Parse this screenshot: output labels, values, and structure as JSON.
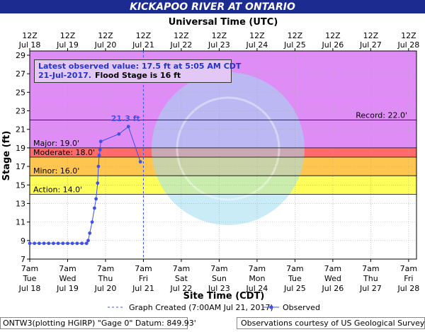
{
  "chart_data": {
    "type": "line",
    "title": "KICKAPOO RIVER AT ONTARIO",
    "top_axis_title": "Universal Time (UTC)",
    "ylabel": "Stage (ft)",
    "xlabel": "Site Time (CDT)",
    "xlim": [
      "Jul 18 07:00",
      "Jul 28 12:00"
    ],
    "ylim": [
      7,
      29
    ],
    "yticks": [
      7,
      9,
      11,
      13,
      15,
      17,
      19,
      21,
      23,
      25,
      27,
      29
    ],
    "xticks": [
      "Jul 18 07:00",
      "Jul 19 07:00",
      "Jul 20 07:00",
      "Jul 21 07:00",
      "Jul 22 07:00",
      "Jul 23 07:00",
      "Jul 24 07:00",
      "Jul 25 07:00",
      "Jul 26 07:00",
      "Jul 27 07:00",
      "Jul 28 07:00"
    ],
    "xtick_labels": [
      [
        "7am",
        "Tue",
        "Jul 18"
      ],
      [
        "7am",
        "Wed",
        "Jul 19"
      ],
      [
        "7am",
        "Thu",
        "Jul 20"
      ],
      [
        "7am",
        "Fri",
        "Jul 21"
      ],
      [
        "7am",
        "Sat",
        "Jul 22"
      ],
      [
        "7am",
        "Sun",
        "Jul 23"
      ],
      [
        "7am",
        "Mon",
        "Jul 24"
      ],
      [
        "7am",
        "Tue",
        "Jul 25"
      ],
      [
        "7am",
        "Wed",
        "Jul 26"
      ],
      [
        "7am",
        "Thu",
        "Jul 27"
      ],
      [
        "7am",
        "Fri",
        "Jul 28"
      ]
    ],
    "top_xtick_labels": [
      [
        "12Z",
        "Jul 18"
      ],
      [
        "12Z",
        "Jul 19"
      ],
      [
        "12Z",
        "Jul 20"
      ],
      [
        "12Z",
        "Jul 21"
      ],
      [
        "12Z",
        "Jul 22"
      ],
      [
        "12Z",
        "Jul 23"
      ],
      [
        "12Z",
        "Jul 24"
      ],
      [
        "12Z",
        "Jul 25"
      ],
      [
        "12Z",
        "Jul 26"
      ],
      [
        "12Z",
        "Jul 27"
      ],
      [
        "12Z",
        "Jul 28"
      ]
    ],
    "grid": true,
    "series": [
      {
        "name": "Observed",
        "color": "#3f51e8",
        "x": [
          "Jul 18 07:00",
          "Jul 18 10:00",
          "Jul 18 13:00",
          "Jul 18 16:00",
          "Jul 18 19:00",
          "Jul 18 22:00",
          "Jul 19 01:00",
          "Jul 19 04:00",
          "Jul 19 07:00",
          "Jul 19 10:00",
          "Jul 19 13:00",
          "Jul 19 16:00",
          "Jul 19 19:00",
          "Jul 19 20:00",
          "Jul 19 21:00",
          "Jul 19 22:30",
          "Jul 20 00:00",
          "Jul 20 01:00",
          "Jul 20 02:00",
          "Jul 20 02:30",
          "Jul 20 03:00",
          "Jul 20 03:30",
          "Jul 20 04:00",
          "Jul 20 15:30",
          "Jul 20 21:30",
          "Jul 21 05:05"
        ],
        "values": [
          8.7,
          8.7,
          8.7,
          8.7,
          8.7,
          8.7,
          8.7,
          8.7,
          8.7,
          8.7,
          8.7,
          8.7,
          8.7,
          9.0,
          9.8,
          11.0,
          12.5,
          13.5,
          15.2,
          17.0,
          18.2,
          18.8,
          19.7,
          20.5,
          21.3,
          17.5
        ]
      }
    ],
    "peak_label": "21.3 ft",
    "flood_categories": [
      {
        "label": "Action: 14.0'",
        "value": 14,
        "color": "#ffff5c"
      },
      {
        "label": "Minor: 16.0'",
        "value": 16,
        "color": "#ffc64f"
      },
      {
        "label": "Moderate: 18.0'",
        "value": 18,
        "color": "#ff6a6a"
      },
      {
        "label": "Major: 19.0'",
        "value": 19,
        "color": "#df8cf7"
      }
    ],
    "record": {
      "label": "Record: 22.0'",
      "value": 22
    },
    "graph_created": {
      "label": "Graph Created (7:00AM Jul 21, 2017)",
      "x": "Jul 21 07:00"
    },
    "info_box": {
      "line1": "Latest observed value: 17.5 ft at 5:05 AM CDT",
      "line2_date": "21-Jul-2017.",
      "line2_rest": "Flood Stage is 16 ft"
    }
  },
  "footer": {
    "left": "ONTW3(plotting HGIRP) \"Gage 0\" Datum: 849.93'",
    "right": "Observations courtesy of US Geological Survey"
  }
}
